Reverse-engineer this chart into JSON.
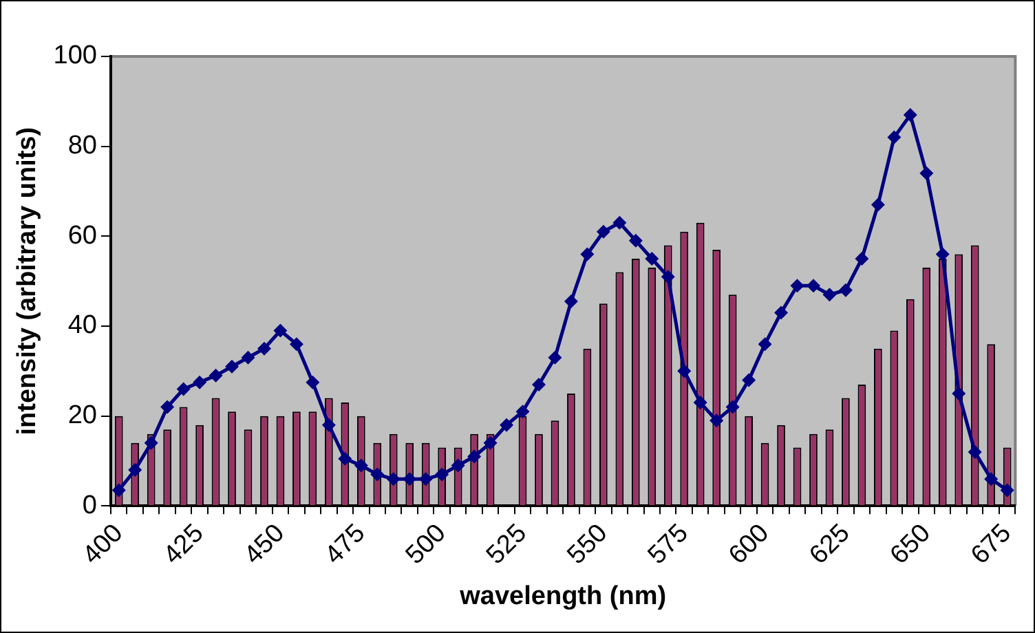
{
  "chart_data": {
    "type": "bar",
    "xlabel": "wavelength (nm)",
    "ylabel": "intensity (arbitrary units)",
    "categories": [
      "400",
      null,
      null,
      null,
      null,
      "425",
      null,
      null,
      null,
      null,
      "450",
      null,
      null,
      null,
      null,
      "475",
      null,
      null,
      null,
      null,
      "500",
      null,
      null,
      null,
      null,
      "525",
      null,
      null,
      null,
      null,
      "550",
      null,
      null,
      null,
      null,
      "575",
      null,
      null,
      null,
      null,
      "600",
      null,
      null,
      null,
      null,
      "625",
      null,
      null,
      null,
      null,
      "650",
      null,
      null,
      null,
      null,
      "675"
    ],
    "series": [
      {
        "color": "#993366",
        "values": [
          20,
          14,
          16,
          17,
          22,
          18,
          24,
          21,
          17,
          20,
          20,
          21,
          21,
          24,
          23,
          20,
          14,
          16,
          14,
          14,
          13,
          13,
          16,
          16,
          null,
          20,
          16,
          19,
          25,
          35,
          45,
          52,
          55,
          53,
          58,
          61,
          63,
          57,
          47,
          20,
          14,
          18,
          13,
          16,
          17,
          24,
          27,
          35,
          39,
          46,
          53,
          55,
          56,
          58,
          36,
          13
        ]
      },
      {
        "type": "line",
        "color": "#000080",
        "values": [
          3.5,
          8,
          14,
          22,
          26,
          27.5,
          29,
          31,
          33,
          35,
          39,
          36,
          27.5,
          18,
          10.5,
          9,
          7,
          6,
          6,
          6,
          7,
          9,
          11,
          14,
          18,
          21,
          27,
          33,
          45.5,
          56,
          61,
          63,
          59,
          55,
          51,
          30,
          23,
          19,
          22,
          28,
          36,
          43,
          49,
          49,
          47,
          48,
          55,
          67,
          82,
          87,
          74,
          56,
          25,
          12,
          6,
          3.5
        ]
      }
    ],
    "ylim": [
      0,
      100
    ],
    "yticks": [
      0,
      20,
      40,
      60,
      80,
      100
    ],
    "grid": false,
    "legend": false,
    "marker": "diamond",
    "line_style": "solid"
  }
}
